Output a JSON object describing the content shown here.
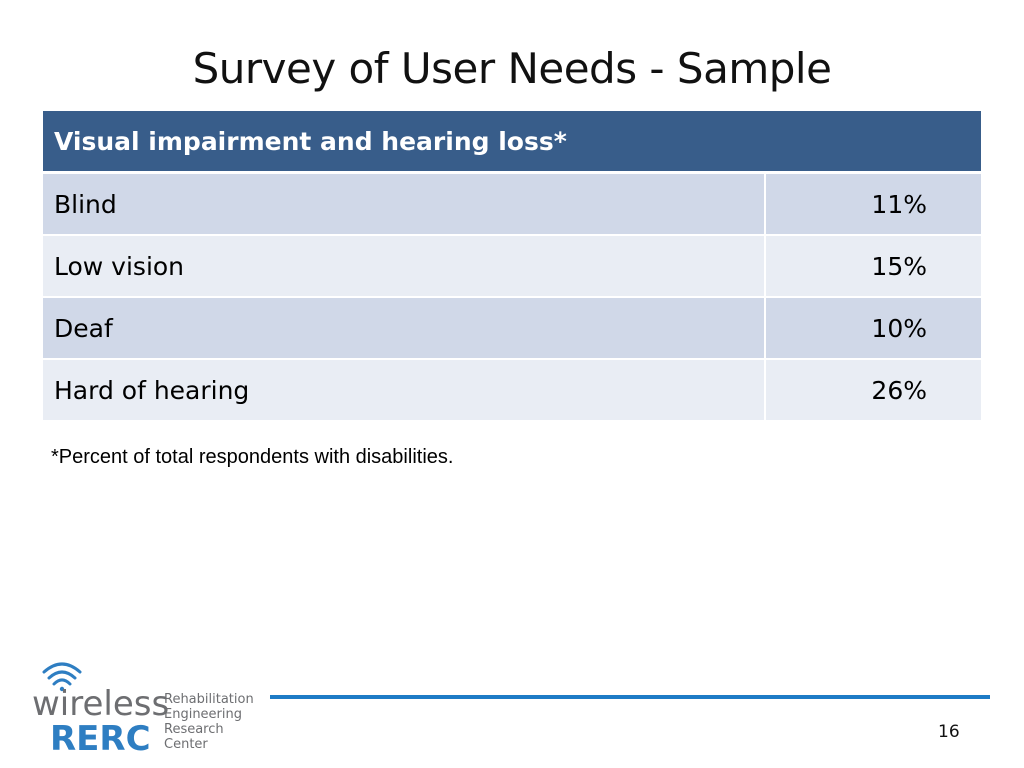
{
  "slide": {
    "title": "Survey of User Needs - Sample",
    "table": {
      "header": "Visual impairment and hearing loss*",
      "rows": [
        {
          "label": "Blind",
          "value": "11%"
        },
        {
          "label": "Low vision",
          "value": "15%"
        },
        {
          "label": "Deaf",
          "value": "10%"
        },
        {
          "label": "Hard of hearing",
          "value": "26%"
        }
      ]
    },
    "footnote": "*Percent of total respondents with disabilities.",
    "page_number": "16"
  },
  "logo": {
    "word1": "wireless",
    "word2": "RERC",
    "tagline": [
      "Rehabilitation",
      "Engineering",
      "Research",
      "Center"
    ],
    "colors": {
      "gray": "#6d6e71",
      "blue": "#2e7ec2"
    }
  },
  "colors": {
    "header_bg": "#385d8a",
    "row_odd": "#d0d8e8",
    "row_even": "#e9edf4",
    "rule": "#1d7bc6"
  }
}
